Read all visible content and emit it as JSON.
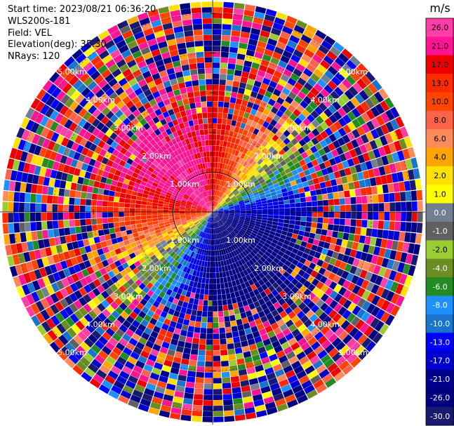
{
  "info": {
    "start_time": "Start time: 2023/08/21 06:36:20",
    "instrument": "WLS200s-181",
    "field": "Field: VEL",
    "elevation": "Elevation(deg): 35.30",
    "nrays": "NRays: 120"
  },
  "chart_data": {
    "type": "heatmap",
    "projection": "polar-ppi",
    "field": "VEL",
    "units": "m/s",
    "range_labels": [
      "1.00km",
      "2.00km",
      "3.00km",
      "4.00km",
      "5.00km"
    ],
    "rmax_km": 5.3,
    "nrays": 120,
    "colorbar": {
      "title": "m/s",
      "ticks": [
        "26.0",
        "21.0",
        "17.0",
        "13.0",
        "10.0",
        "8.0",
        "6.0",
        "4.0",
        "2.0",
        "1.0",
        "0.0",
        "-1.0",
        "-2.0",
        "-4.0",
        "-6.0",
        "-8.0",
        "-10.0",
        "-13.0",
        "-17.0",
        "-21.0",
        "-26.0",
        "-30.0"
      ],
      "colors": [
        "#ff3fa5",
        "#ff1493",
        "#ee0000",
        "#ff2a00",
        "#ff4500",
        "#ff6347",
        "#ff8a5a",
        "#ffa500",
        "#ffe000",
        "#ffff00",
        "#708090",
        "#606060",
        "#9acd32",
        "#6b8e23",
        "#228b22",
        "#1e90ff",
        "#1874cd",
        "#0000ff",
        "#0000cd",
        "#00008b",
        "#000080",
        "#191970"
      ]
    }
  }
}
